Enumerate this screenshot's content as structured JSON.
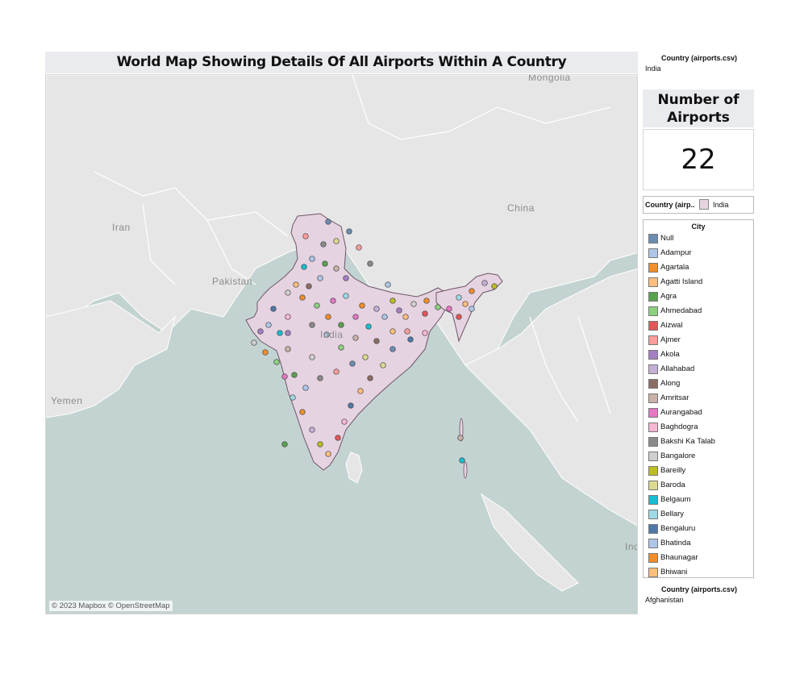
{
  "title": "World Map Showing Details Of All Airports Within A Country",
  "map": {
    "place_labels": [
      "Mongolia",
      "Iran",
      "Pakistan",
      "China",
      "India",
      "Yemen",
      "Ind"
    ],
    "attribution": "© 2023 Mapbox © OpenStreetMap",
    "highlight_color": "#e6d3e2",
    "water_color": "#c3d3d2",
    "land_color": "#e6e6e6"
  },
  "filter_top": {
    "label": "Country (airports.csv)",
    "value": "India"
  },
  "kpi": {
    "title": "Number of Airports",
    "value": "22"
  },
  "country_legend": {
    "label": "Country (airp..",
    "value": "India",
    "color": "#e6d3e2"
  },
  "city_legend": {
    "title": "City",
    "items": [
      {
        "name": "Null",
        "color": "#6b8db3"
      },
      {
        "name": "Adampur",
        "color": "#aec7e8"
      },
      {
        "name": "Agartala",
        "color": "#f28e2b"
      },
      {
        "name": "Agatti Island",
        "color": "#ffbe7d"
      },
      {
        "name": "Agra",
        "color": "#59a14f"
      },
      {
        "name": "Ahmedabad",
        "color": "#8cd17d"
      },
      {
        "name": "Aizwal",
        "color": "#e15759"
      },
      {
        "name": "Ajmer",
        "color": "#ff9d9a"
      },
      {
        "name": "Akola",
        "color": "#a57fc4"
      },
      {
        "name": "Allahabad",
        "color": "#c5b0d5"
      },
      {
        "name": "Along",
        "color": "#8c6d63"
      },
      {
        "name": "Amritsar",
        "color": "#c9b1a9"
      },
      {
        "name": "Aurangabad",
        "color": "#e377c2"
      },
      {
        "name": "Baghdogra",
        "color": "#f7b6d2"
      },
      {
        "name": "Bakshi Ka Talab",
        "color": "#8a8a8a"
      },
      {
        "name": "Bangalore",
        "color": "#cfcfcf"
      },
      {
        "name": "Bareilly",
        "color": "#bcbd22"
      },
      {
        "name": "Baroda",
        "color": "#dbdb8d"
      },
      {
        "name": "Belgaum",
        "color": "#17becf"
      },
      {
        "name": "Bellary",
        "color": "#9edae5"
      },
      {
        "name": "Bengaluru",
        "color": "#4e79a7"
      },
      {
        "name": "Bhatinda",
        "color": "#aec7e8"
      },
      {
        "name": "Bhaunagar",
        "color": "#f28e2b"
      },
      {
        "name": "Bhiwani",
        "color": "#ffbe7d"
      }
    ]
  },
  "filter_bottom": {
    "label": "Country (airports.csv)",
    "value": "Afghanistan"
  }
}
